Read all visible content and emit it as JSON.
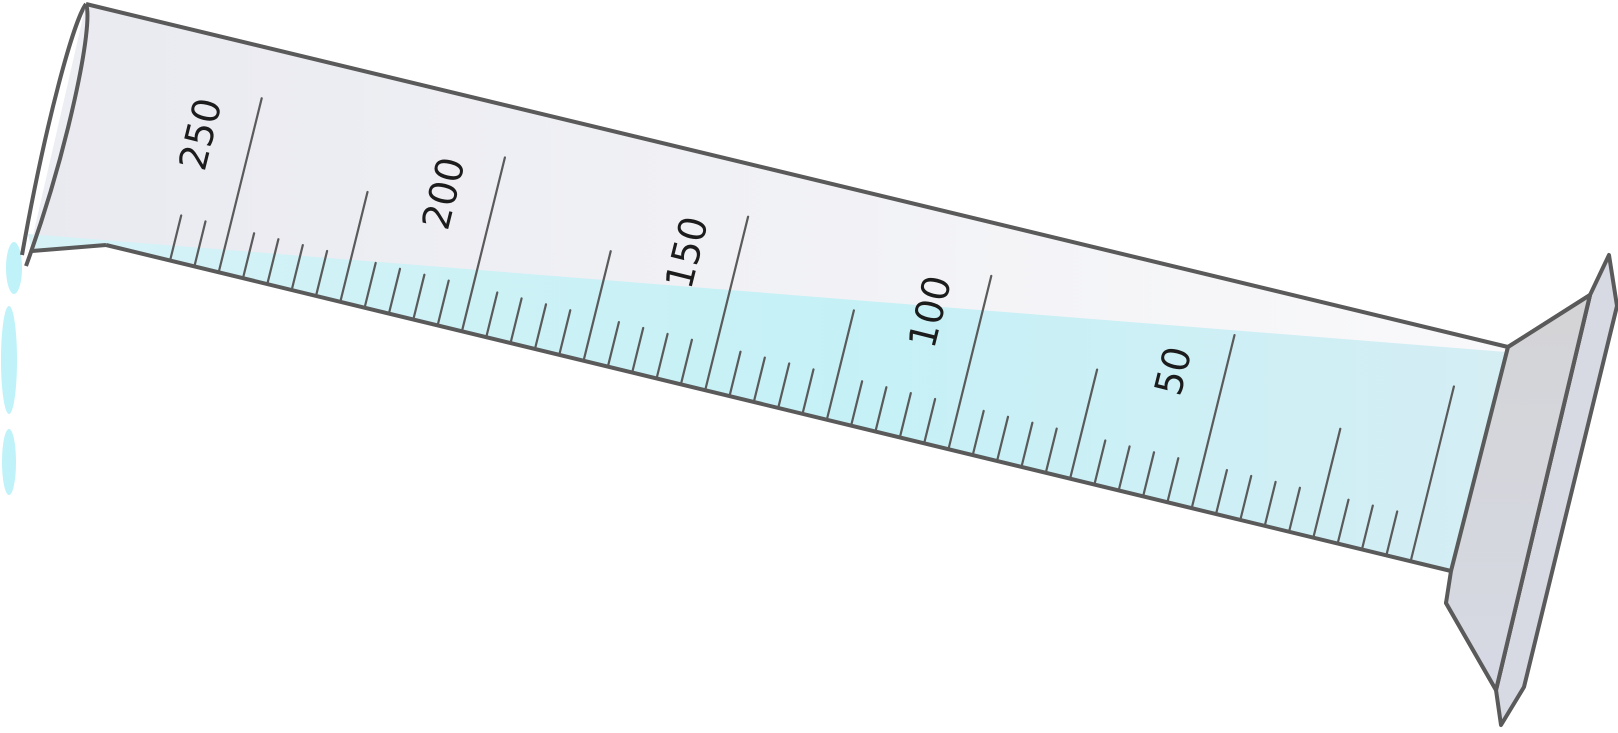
{
  "cylinder": {
    "scale_labels": [
      "50",
      "100",
      "150",
      "200",
      "250"
    ],
    "scale_values": [
      50,
      100,
      150,
      200,
      250
    ],
    "minor_tick_step": 5,
    "scale_range": [
      0,
      260
    ]
  },
  "colors": {
    "liquid": "#b9ecf5",
    "liquid_dark": "#a4e6f2",
    "glass": "#f0f0f3",
    "base": "#d2d4db",
    "outline": "#5a5a5a",
    "droplet": "#a9eef7"
  }
}
